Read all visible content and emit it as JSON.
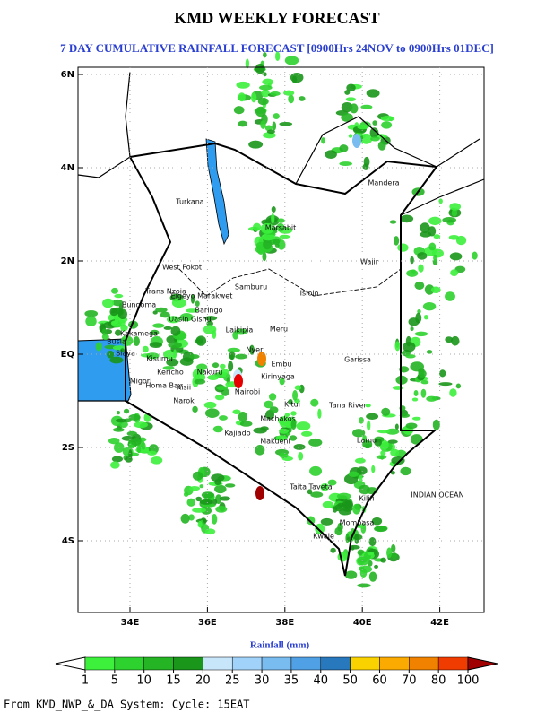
{
  "header": {
    "title": "KMD WEEKLY FORECAST",
    "subtitle": "7 DAY CUMULATIVE RAINFALL FORECAST [0900Hrs 24NOV to 0900Hrs 01DEC]"
  },
  "map": {
    "lon_ticks": [
      {
        "value": 34,
        "label": "34E"
      },
      {
        "value": 36,
        "label": "36E"
      },
      {
        "value": 38,
        "label": "38E"
      },
      {
        "value": 40,
        "label": "40E"
      },
      {
        "value": 42,
        "label": "42E"
      }
    ],
    "lat_ticks": [
      {
        "value": 6,
        "label": "6N"
      },
      {
        "value": 4,
        "label": "4N"
      },
      {
        "value": 2,
        "label": "2N"
      },
      {
        "value": 0,
        "label": "EQ"
      },
      {
        "value": -2,
        "label": "2S"
      },
      {
        "value": -4,
        "label": "4S"
      }
    ],
    "places": [
      "Turkana",
      "Marsabit",
      "Mandera",
      "Wajir",
      "West Pokot",
      "Samburu",
      "Isiolo",
      "Elgeyo Marakwet",
      "Baringo",
      "Trans Nzoia",
      "Bungoma",
      "Uasin Gishu",
      "Kakamega",
      "Busia",
      "Siaya",
      "Kisumu",
      "Laikipia",
      "Meru",
      "Nakuru",
      "Kericho",
      "Homa Bay",
      "Kisii",
      "Migori",
      "Narok",
      "Nyeri",
      "Embu",
      "Kirinyaga",
      "Nairobi",
      "Kajiado",
      "Machakos",
      "Kitui",
      "Makueni",
      "Garissa",
      "Tana River",
      "Lamu",
      "Taita Taveta",
      "Kilifi",
      "Mombasa",
      "Kwale",
      "INDIAN OCEAN"
    ]
  },
  "legend": {
    "title": "Rainfall (mm)",
    "levels": [
      1,
      5,
      10,
      15,
      20,
      25,
      30,
      35,
      40,
      50,
      60,
      70,
      80,
      100
    ],
    "colors": [
      "#ffffff",
      "#3cf03c",
      "#2ed22e",
      "#24b424",
      "#1a961a",
      "#c8e6fa",
      "#a0d2fa",
      "#78bcf0",
      "#50a0e6",
      "#2878be",
      "#fad200",
      "#faaa00",
      "#f08200",
      "#f03c00",
      "#e60000",
      "#a00000"
    ]
  },
  "footer": "From KMD_NWP_&_DA System: Cycle: 15EAT"
}
